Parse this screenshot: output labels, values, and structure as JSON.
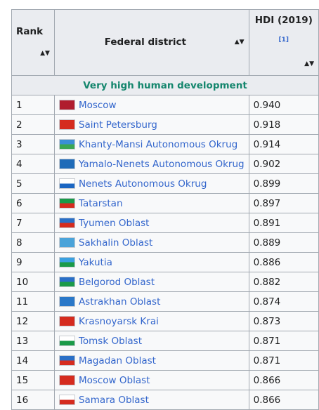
{
  "table": {
    "headers": {
      "rank": "Rank",
      "district": "Federal district",
      "hdi": "HDI (2019)",
      "hdi_ref": "[1]",
      "sort_icon": "sort-arrows-icon"
    },
    "section_label": "Very high human development",
    "rows": [
      {
        "rank": "1",
        "district": "Moscow",
        "hdi": "0.940",
        "flag_icon": "moscow-flag-icon",
        "flag": {
          "a": "#b01c2e",
          "b": "#b01c2e"
        }
      },
      {
        "rank": "2",
        "district": "Saint Petersburg",
        "hdi": "0.918",
        "flag_icon": "saint-petersburg-flag-icon",
        "flag": {
          "a": "#d52b1e",
          "b": "#d52b1e"
        }
      },
      {
        "rank": "3",
        "district": "Khanty-Mansi Autonomous Okrug",
        "hdi": "0.914",
        "flag_icon": "khanty-mansi-flag-icon",
        "flag": {
          "a": "#3a8fd6",
          "b": "#3aa655"
        }
      },
      {
        "rank": "4",
        "district": "Yamalo-Nenets Autonomous Okrug",
        "hdi": "0.902",
        "flag_icon": "yamalo-nenets-flag-icon",
        "flag": {
          "a": "#1f6bb8",
          "b": "#1f6bb8"
        }
      },
      {
        "rank": "5",
        "district": "Nenets Autonomous Okrug",
        "hdi": "0.899",
        "flag_icon": "nenets-flag-icon",
        "flag": {
          "a": "#ffffff",
          "b": "#1a66c2"
        }
      },
      {
        "rank": "6",
        "district": "Tatarstan",
        "hdi": "0.897",
        "flag_icon": "tatarstan-flag-icon",
        "flag": {
          "a": "#1a9a48",
          "b": "#d52b1e"
        }
      },
      {
        "rank": "7",
        "district": "Tyumen Oblast",
        "hdi": "0.891",
        "flag_icon": "tyumen-flag-icon",
        "flag": {
          "a": "#2a6fc6",
          "b": "#d52b1e"
        }
      },
      {
        "rank": "8",
        "district": "Sakhalin Oblast",
        "hdi": "0.889",
        "flag_icon": "sakhalin-flag-icon",
        "flag": {
          "a": "#4aa3d9",
          "b": "#4aa3d9"
        }
      },
      {
        "rank": "9",
        "district": "Yakutia",
        "hdi": "0.886",
        "flag_icon": "yakutia-flag-icon",
        "flag": {
          "a": "#3aa0e0",
          "b": "#1a9a48"
        }
      },
      {
        "rank": "10",
        "district": "Belgorod Oblast",
        "hdi": "0.882",
        "flag_icon": "belgorod-flag-icon",
        "flag": {
          "a": "#2a6fc6",
          "b": "#1a9a48"
        }
      },
      {
        "rank": "11",
        "district": "Astrakhan Oblast",
        "hdi": "0.874",
        "flag_icon": "astrakhan-flag-icon",
        "flag": {
          "a": "#2a78c8",
          "b": "#2a78c8"
        }
      },
      {
        "rank": "12",
        "district": "Krasnoyarsk Krai",
        "hdi": "0.873",
        "flag_icon": "krasnoyarsk-flag-icon",
        "flag": {
          "a": "#d52b1e",
          "b": "#d52b1e"
        }
      },
      {
        "rank": "13",
        "district": "Tomsk Oblast",
        "hdi": "0.871",
        "flag_icon": "tomsk-flag-icon",
        "flag": {
          "a": "#ffffff",
          "b": "#1a9a48"
        }
      },
      {
        "rank": "14",
        "district": "Magadan Oblast",
        "hdi": "0.871",
        "flag_icon": "magadan-flag-icon",
        "flag": {
          "a": "#2a6fc6",
          "b": "#d52b1e"
        }
      },
      {
        "rank": "15",
        "district": "Moscow Oblast",
        "hdi": "0.866",
        "flag_icon": "moscow-oblast-flag-icon",
        "flag": {
          "a": "#d52b1e",
          "b": "#d52b1e"
        }
      },
      {
        "rank": "16",
        "district": "Samara Oblast",
        "hdi": "0.866",
        "flag_icon": "samara-flag-icon",
        "flag": {
          "a": "#ffffff",
          "b": "#d52b1e"
        }
      }
    ]
  }
}
